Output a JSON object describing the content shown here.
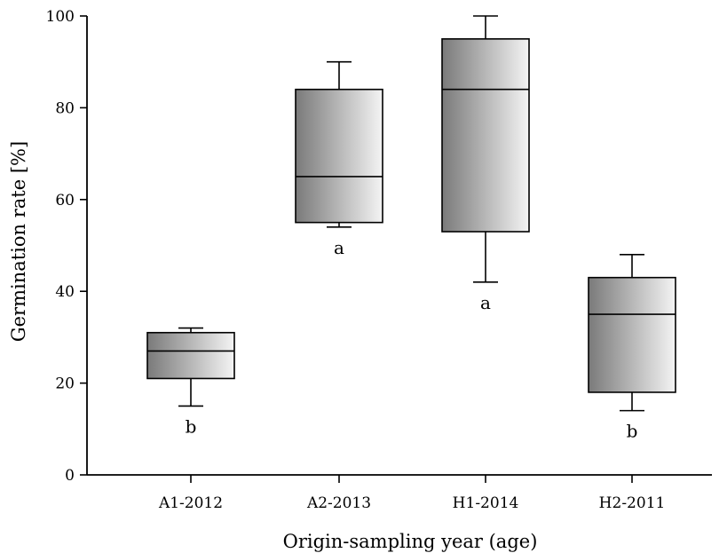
{
  "chart_data": {
    "type": "boxplot",
    "title": "",
    "xlabel": "Origin-sampling year (age)",
    "ylabel": "Germination rate [%]",
    "ylim": [
      0,
      100
    ],
    "yticks": [
      0,
      20,
      40,
      60,
      80,
      100
    ],
    "categories": [
      "A1-2012",
      "A2-2013",
      "H1-2014",
      "H2-2011"
    ],
    "series": [
      {
        "whisker_low": [
          15,
          54,
          42,
          14
        ],
        "q1": [
          21,
          55,
          53,
          18
        ],
        "median": [
          27,
          65,
          84,
          35
        ],
        "q3": [
          31,
          84,
          95,
          43
        ],
        "whisker_high": [
          32,
          90,
          100,
          48
        ],
        "significance": [
          "b",
          "a",
          "a",
          "b"
        ]
      }
    ],
    "grid": false,
    "legend": "none",
    "colors": {
      "box_gradient_dark": "#7a7a7a",
      "box_gradient_light": "#f4f4f4",
      "line": "#000000"
    }
  }
}
